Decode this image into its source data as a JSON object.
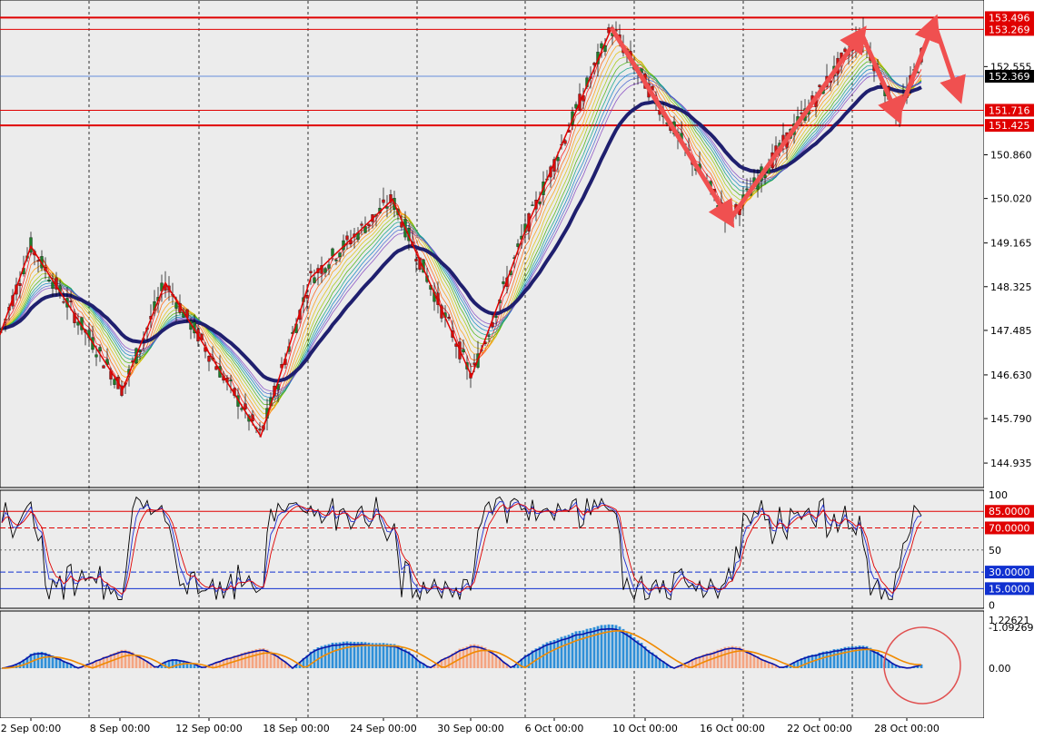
{
  "colors": {
    "background": "#ececec",
    "axis_bg": "#ffffff",
    "bull_candle": "#1e7c2a",
    "bear_candle": "#cc1111",
    "level_line": "#e00000",
    "price_line": "#3a6fd8",
    "slow_ma": "#1f1f6e",
    "zigzag": "#e00000",
    "arrow": "#f05050",
    "hist_pos": "#2f8fd8",
    "hist_neg": "#f4a582",
    "macd_line": "#0a14a8",
    "signal_line": "#f08a00",
    "stoch_k": "#000000",
    "stoch_d": "#2030d0",
    "stoch_s": "#e00000",
    "circle": "#e05050"
  },
  "chart_data": [
    {
      "type": "candlestick",
      "title": "",
      "ylim": [
        144.5,
        153.8
      ],
      "y_ticks": [
        "153.496",
        "153.269",
        "152.555",
        "152.369",
        "151.716",
        "151.425",
        "150.860",
        "150.020",
        "149.165",
        "148.325",
        "147.485",
        "146.630",
        "145.790",
        "144.935"
      ],
      "y_tick_values": [
        153.496,
        153.269,
        152.555,
        152.369,
        151.716,
        151.425,
        150.86,
        150.02,
        149.165,
        148.325,
        147.485,
        146.63,
        145.79,
        144.935
      ],
      "highlighted_levels": [
        {
          "label": "153.496",
          "value": 153.496,
          "color": "#e00000"
        },
        {
          "label": "153.269",
          "value": 153.269,
          "color": "#e00000"
        },
        {
          "label": "151.716",
          "value": 151.716,
          "color": "#e00000"
        },
        {
          "label": "151.425",
          "value": 151.425,
          "color": "#e00000"
        }
      ],
      "current_price": {
        "label": "152.369",
        "value": 152.369
      },
      "zigzag": [
        {
          "x": 0,
          "y": 147.4
        },
        {
          "x": 34,
          "y": 149.1
        },
        {
          "x": 135,
          "y": 146.35
        },
        {
          "x": 182,
          "y": 148.4
        },
        {
          "x": 287,
          "y": 145.45
        },
        {
          "x": 342,
          "y": 148.5
        },
        {
          "x": 432,
          "y": 150.0
        },
        {
          "x": 519,
          "y": 146.6
        },
        {
          "x": 578,
          "y": 149.4
        },
        {
          "x": 673,
          "y": 153.3
        },
        {
          "x": 803,
          "y": 149.6
        },
        {
          "x": 948,
          "y": 153.2
        },
        {
          "x": 988,
          "y": 151.6
        },
        {
          "x": 1028,
          "y": 153.4
        }
      ],
      "arrows": [
        {
          "from": [
            673,
            153.3
          ],
          "to": [
            803,
            149.6
          ]
        },
        {
          "from": [
            803,
            149.6
          ],
          "to": [
            948,
            153.2
          ]
        },
        {
          "from": [
            948,
            153.2
          ],
          "to": [
            988,
            151.6
          ]
        },
        {
          "from": [
            988,
            151.6
          ],
          "to": [
            1028,
            153.4
          ]
        },
        {
          "from": [
            1028,
            153.4
          ],
          "to": [
            1055,
            152.0
          ]
        }
      ]
    },
    {
      "type": "line",
      "name": "stochastic",
      "ylim": [
        0,
        100
      ],
      "y_ticks": [
        "100",
        "50",
        "0"
      ],
      "levels": [
        {
          "label": "85.0000",
          "value": 85,
          "color": "#e00000",
          "style": "solid"
        },
        {
          "label": "70.0000",
          "value": 70,
          "color": "#e00000",
          "style": "dash"
        },
        {
          "label": "30.0000",
          "value": 30,
          "color": "#1030d0",
          "style": "dash"
        },
        {
          "label": "15.0000",
          "value": 15,
          "color": "#1030d0",
          "style": "solid"
        }
      ],
      "mid_level": 50
    },
    {
      "type": "bar",
      "name": "macd",
      "ylim": [
        -1.09269,
        1.22621
      ],
      "y_ticks": [
        "1.22621",
        "0.00",
        "-1.09269"
      ],
      "y_tick_values": [
        1.22621,
        0.0,
        -1.09269
      ]
    }
  ],
  "x_axis": {
    "labels": [
      "2 Sep 00:00",
      "8 Sep 00:00",
      "12 Sep 00:00",
      "18 Sep 00:00",
      "24 Sep 00:00",
      "30 Sep 00:00",
      "6 Oct 00:00",
      "10 Oct 00:00",
      "16 Oct 00:00",
      "22 Oct 00:00",
      "28 Oct 00:00"
    ]
  }
}
